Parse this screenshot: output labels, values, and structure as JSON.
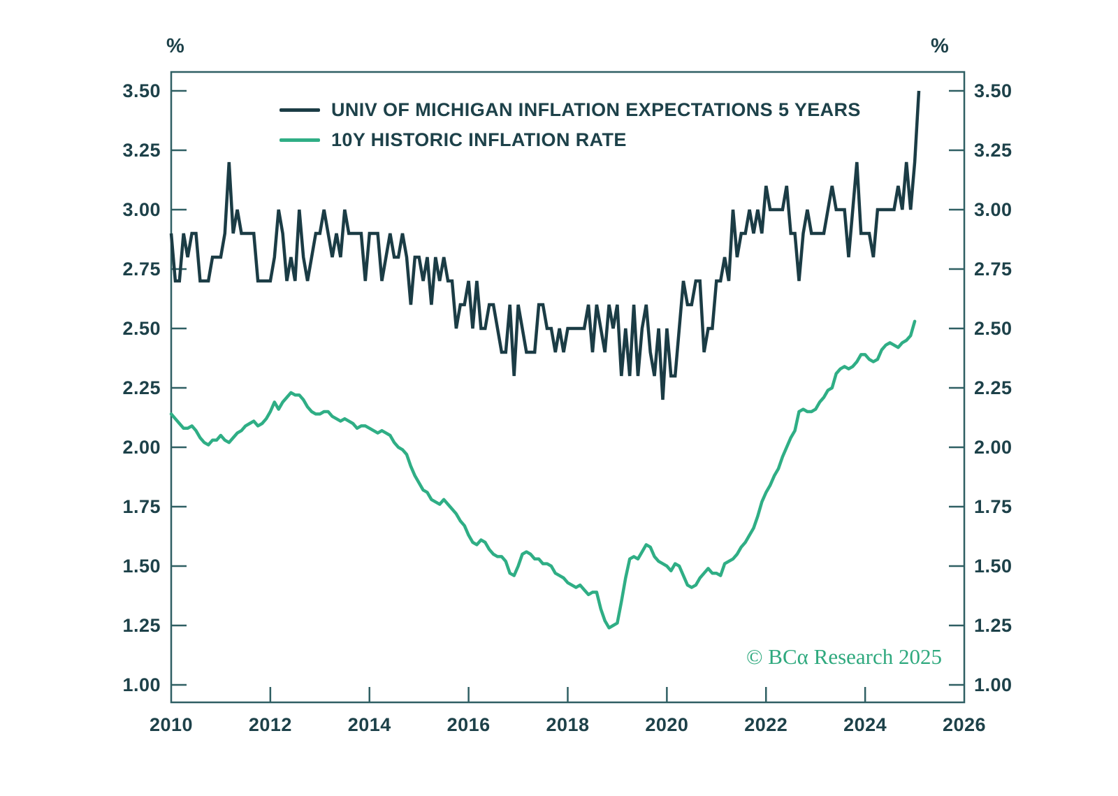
{
  "page": {
    "background": "#ffffff"
  },
  "chart_data": {
    "type": "line",
    "title": "",
    "xlabel": "",
    "ylabel": "%",
    "unit_label_left": "%",
    "unit_label_right": "%",
    "grid": false,
    "legend_position": "top-left-inside",
    "watermark": "© BCα Research 2025",
    "watermark_color": "#2fa97e",
    "axis_color": "#2f5f63",
    "tick_label_color": "#1d4149",
    "x_axis": {
      "range": [
        2010,
        2026
      ],
      "ticks": [
        2010,
        2012,
        2014,
        2016,
        2018,
        2020,
        2022,
        2024,
        2026
      ]
    },
    "y_axis": {
      "range": [
        1.0,
        3.5
      ],
      "tick_step": 0.25,
      "tick_labels": [
        "1.00",
        "1.25",
        "1.50",
        "1.75",
        "2.00",
        "2.25",
        "2.50",
        "2.75",
        "3.00",
        "3.25",
        "3.50"
      ]
    },
    "series": [
      {
        "name": "UNIV OF MICHIGAN INFLATION EXPECTATIONS 5 YEARS",
        "color": "#1b3c45",
        "start_year": 2010,
        "frequency": "monthly",
        "values": [
          2.9,
          2.7,
          2.7,
          2.9,
          2.8,
          2.9,
          2.9,
          2.7,
          2.7,
          2.7,
          2.8,
          2.8,
          2.8,
          2.9,
          3.2,
          2.9,
          3.0,
          2.9,
          2.9,
          2.9,
          2.9,
          2.7,
          2.7,
          2.7,
          2.7,
          2.8,
          3.0,
          2.9,
          2.7,
          2.8,
          2.7,
          3.0,
          2.8,
          2.7,
          2.8,
          2.9,
          2.9,
          3.0,
          2.9,
          2.8,
          2.9,
          2.8,
          3.0,
          2.9,
          2.9,
          2.9,
          2.9,
          2.7,
          2.9,
          2.9,
          2.9,
          2.7,
          2.8,
          2.9,
          2.8,
          2.8,
          2.9,
          2.8,
          2.6,
          2.8,
          2.8,
          2.7,
          2.8,
          2.6,
          2.8,
          2.7,
          2.8,
          2.7,
          2.7,
          2.5,
          2.6,
          2.6,
          2.7,
          2.5,
          2.7,
          2.5,
          2.5,
          2.6,
          2.6,
          2.5,
          2.4,
          2.4,
          2.6,
          2.3,
          2.6,
          2.5,
          2.4,
          2.4,
          2.4,
          2.6,
          2.6,
          2.5,
          2.5,
          2.4,
          2.5,
          2.4,
          2.5,
          2.5,
          2.5,
          2.5,
          2.5,
          2.6,
          2.4,
          2.6,
          2.5,
          2.4,
          2.6,
          2.5,
          2.6,
          2.3,
          2.5,
          2.3,
          2.6,
          2.3,
          2.5,
          2.6,
          2.4,
          2.3,
          2.5,
          2.2,
          2.5,
          2.3,
          2.3,
          2.5,
          2.7,
          2.6,
          2.6,
          2.7,
          2.7,
          2.4,
          2.5,
          2.5,
          2.7,
          2.7,
          2.8,
          2.7,
          3.0,
          2.8,
          2.9,
          2.9,
          3.0,
          2.9,
          3.0,
          2.9,
          3.1,
          3.0,
          3.0,
          3.0,
          3.0,
          3.1,
          2.9,
          2.9,
          2.7,
          2.9,
          3.0,
          2.9,
          2.9,
          2.9,
          2.9,
          3.0,
          3.1,
          3.0,
          3.0,
          3.0,
          2.8,
          3.0,
          3.2,
          2.9,
          2.9,
          2.9,
          2.8,
          3.0,
          3.0,
          3.0,
          3.0,
          3.0,
          3.1,
          3.0,
          3.2,
          3.0,
          3.2,
          3.5
        ]
      },
      {
        "name": "10Y HISTORIC INFLATION RATE",
        "color": "#2fae85",
        "start_year": 2010,
        "frequency": "monthly",
        "values": [
          2.14,
          2.12,
          2.1,
          2.08,
          2.08,
          2.09,
          2.07,
          2.04,
          2.02,
          2.01,
          2.03,
          2.03,
          2.05,
          2.03,
          2.02,
          2.04,
          2.06,
          2.07,
          2.09,
          2.1,
          2.11,
          2.09,
          2.1,
          2.12,
          2.15,
          2.19,
          2.16,
          2.19,
          2.21,
          2.23,
          2.22,
          2.22,
          2.2,
          2.17,
          2.15,
          2.14,
          2.14,
          2.15,
          2.15,
          2.13,
          2.12,
          2.11,
          2.12,
          2.11,
          2.1,
          2.08,
          2.09,
          2.09,
          2.08,
          2.07,
          2.06,
          2.07,
          2.06,
          2.05,
          2.02,
          2.0,
          1.99,
          1.97,
          1.92,
          1.88,
          1.85,
          1.82,
          1.81,
          1.78,
          1.77,
          1.76,
          1.78,
          1.76,
          1.74,
          1.72,
          1.69,
          1.67,
          1.63,
          1.6,
          1.59,
          1.61,
          1.6,
          1.57,
          1.55,
          1.54,
          1.54,
          1.52,
          1.47,
          1.46,
          1.5,
          1.55,
          1.56,
          1.55,
          1.53,
          1.53,
          1.51,
          1.51,
          1.5,
          1.47,
          1.46,
          1.45,
          1.43,
          1.42,
          1.41,
          1.42,
          1.4,
          1.38,
          1.39,
          1.39,
          1.32,
          1.27,
          1.24,
          1.25,
          1.26,
          1.35,
          1.45,
          1.53,
          1.54,
          1.53,
          1.56,
          1.59,
          1.58,
          1.54,
          1.52,
          1.51,
          1.5,
          1.48,
          1.51,
          1.5,
          1.46,
          1.42,
          1.41,
          1.42,
          1.45,
          1.47,
          1.49,
          1.47,
          1.47,
          1.46,
          1.51,
          1.52,
          1.53,
          1.55,
          1.58,
          1.6,
          1.63,
          1.66,
          1.71,
          1.77,
          1.81,
          1.84,
          1.88,
          1.91,
          1.96,
          2.0,
          2.04,
          2.07,
          2.15,
          2.16,
          2.15,
          2.15,
          2.16,
          2.19,
          2.21,
          2.24,
          2.25,
          2.31,
          2.33,
          2.34,
          2.33,
          2.34,
          2.36,
          2.39,
          2.39,
          2.37,
          2.36,
          2.37,
          2.41,
          2.43,
          2.44,
          2.43,
          2.42,
          2.44,
          2.45,
          2.47,
          2.53
        ]
      }
    ]
  }
}
